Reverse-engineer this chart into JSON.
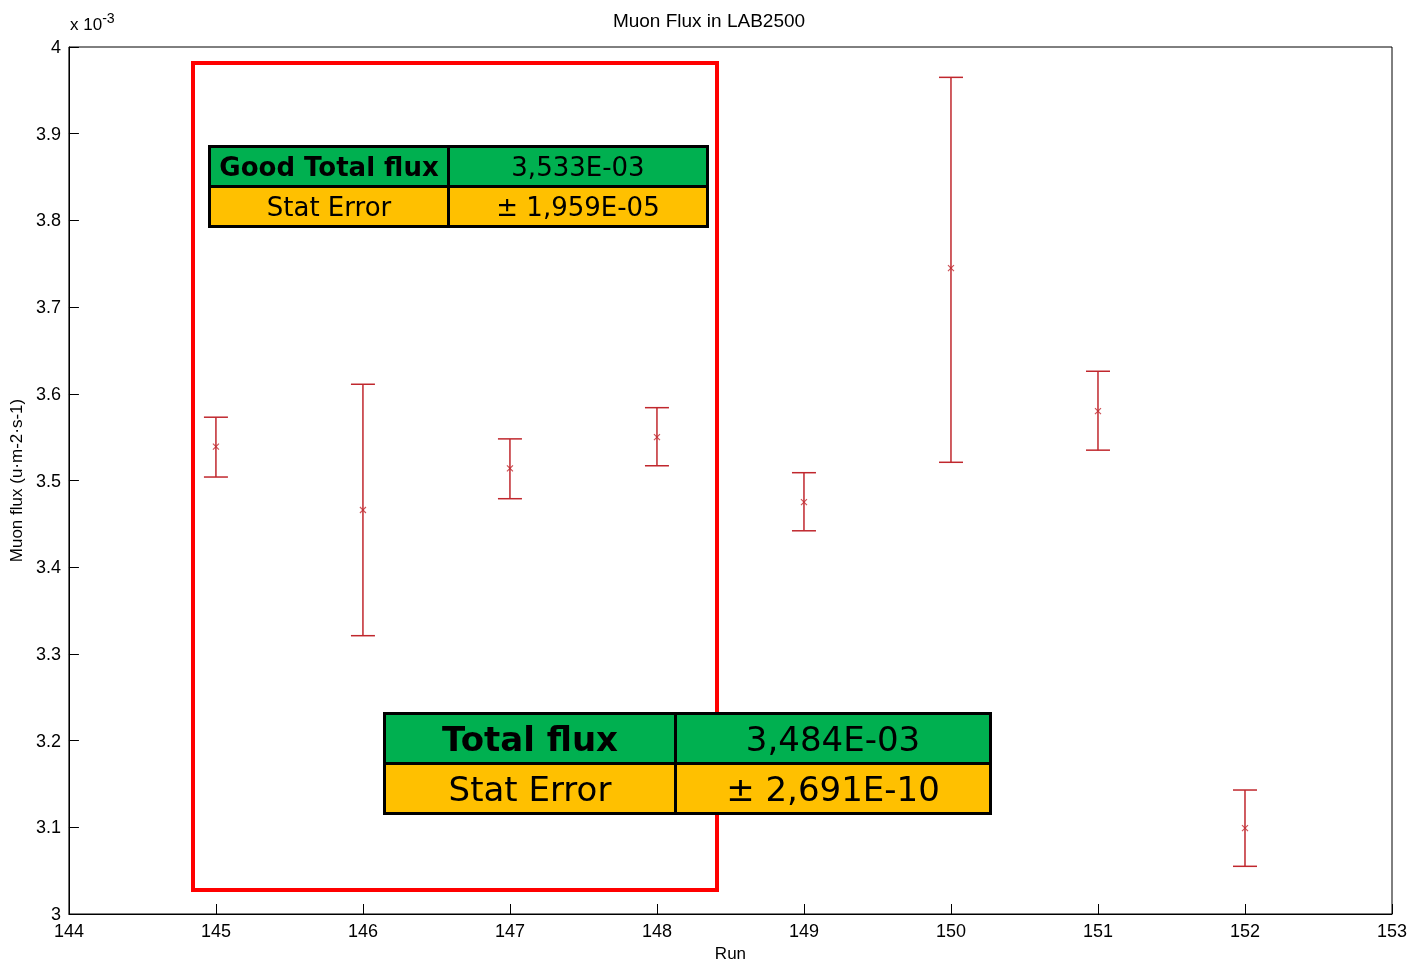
{
  "chart_data": {
    "type": "scatter",
    "title": "Muon Flux in LAB2500",
    "xlabel": "Run",
    "ylabel": "Muon flux (u·m-2·s-1)",
    "x": [
      145,
      146,
      147,
      148,
      149,
      150,
      151,
      152
    ],
    "series": [
      {
        "color": "#c0272d",
        "values": [
          3.539,
          3.466,
          3.514,
          3.55,
          3.475,
          3.745,
          3.58,
          3.099
        ],
        "errors": [
          [
            3.504,
            3.573
          ],
          [
            3.321,
            3.611
          ],
          [
            3.479,
            3.548
          ],
          [
            3.517,
            3.584
          ],
          [
            3.442,
            3.509
          ],
          [
            3.521,
            3.965
          ],
          [
            3.535,
            3.626
          ],
          [
            3.055,
            3.143
          ]
        ]
      }
    ],
    "marker": "cross",
    "grid": false,
    "xlim": [
      144,
      153
    ],
    "xticks": [
      144,
      145,
      146,
      147,
      148,
      149,
      150,
      151,
      152,
      153
    ],
    "ylim": [
      3,
      4
    ],
    "yticks": [
      3,
      3.1,
      3.2,
      3.3,
      3.4,
      3.5,
      3.6,
      3.7,
      3.8,
      3.9,
      4
    ],
    "annotations": [
      "x 10$^{-3}$",
      "Good Total flux",
      "3,533E-03",
      "Stat Error",
      "± 1,959E-05",
      "Total flux",
      "3,484E-03",
      "Stat Error",
      "± 2,691E-10"
    ]
  }
}
